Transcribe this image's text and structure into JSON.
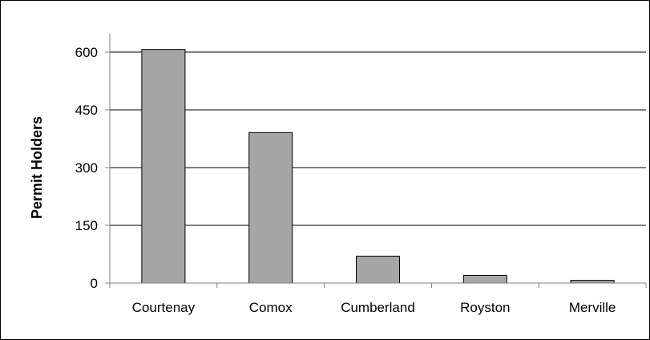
{
  "chart_data": {
    "type": "bar",
    "title": "",
    "xlabel": "",
    "ylabel": "Permit Holders",
    "categories": [
      "Courtenay",
      "Comox",
      "Cumberland",
      "Royston",
      "Merville"
    ],
    "values": [
      607,
      391,
      70,
      20,
      7
    ],
    "ylim": [
      0,
      600
    ],
    "yticks": [
      "0",
      "150",
      "300",
      "450",
      "600"
    ],
    "grid": true,
    "legend": "none",
    "colors": {
      "bar_fill": "#a6a6a6",
      "bar_stroke": "#000000",
      "grid": "#000000",
      "axis": "#808080"
    }
  }
}
